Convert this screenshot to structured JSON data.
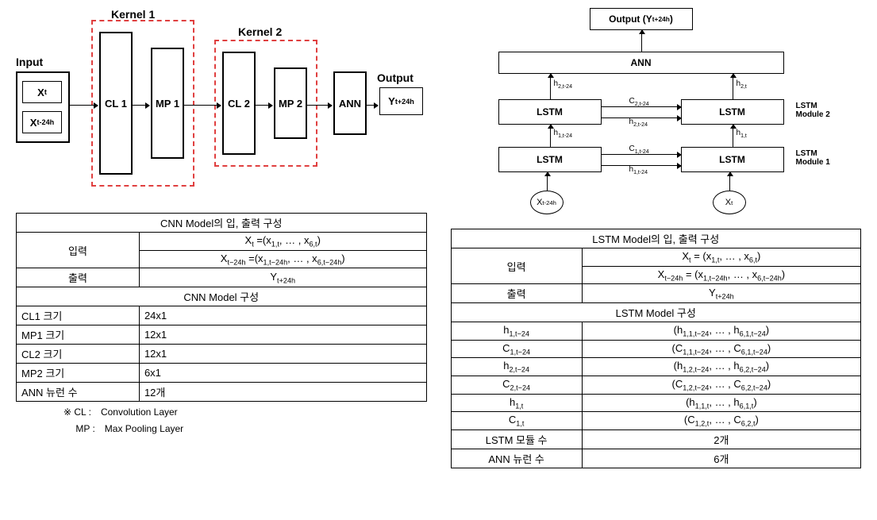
{
  "cnn": {
    "diagram": {
      "input_label": "Input",
      "input_xt": "X<sub>t</sub>",
      "input_xt24": "X<sub>t-24h</sub>",
      "kernel1_label": "Kernel 1",
      "kernel2_label": "Kernel 2",
      "cl1": "CL 1",
      "mp1": "MP 1",
      "cl2": "CL 2",
      "mp2": "MP 2",
      "ann": "ANN",
      "output_label": "Output",
      "output_y": "Y<sub>t+24h</sub>"
    },
    "table": {
      "title1": "CNN Model의 입, 출력 구성",
      "input_label": "입력",
      "input_r1": "X<sub>t</sub> =(x<sub>1,t</sub>, … , x<sub>6,t</sub>)",
      "input_r2": "X<sub>t−24h</sub> =(x<sub>1,t−24h</sub>, … , x<sub>6,t−24h</sub>)",
      "output_label": "출력",
      "output_val": "Y<sub>t+24h</sub>",
      "title2": "CNN Model 구성",
      "rows": [
        [
          "CL1 크기",
          "24x1"
        ],
        [
          "MP1 크기",
          "12x1"
        ],
        [
          "CL2 크기",
          "12x1"
        ],
        [
          "MP2 크기",
          "6x1"
        ],
        [
          "ANN 뉴런 수",
          "12개"
        ]
      ],
      "footnote1": "※ CL :　Convolution Layer",
      "footnote2": "　 MP :　Max Pooling Layer"
    }
  },
  "lstm": {
    "diagram": {
      "output": "Output (Y<sub>t+24h</sub>)",
      "ann": "ANN",
      "lstm": "LSTM",
      "mod1": "LSTM<br>Module 1",
      "mod2": "LSTM<br>Module 2",
      "xt24": "X<sub>t-24h</sub>",
      "xt": "X<sub>t</sub>",
      "h2t24": "h<sub>2,t-24</sub>",
      "h2t": "h<sub>2,t</sub>",
      "c2t24": "C<sub>2,t-24</sub>",
      "h1t24": "h<sub>1,t-24</sub>",
      "h1t": "h<sub>1,t</sub>",
      "c1t24": "C<sub>1,t-24</sub>"
    },
    "table": {
      "title1": "LSTM Model의 입, 출력 구성",
      "input_label": "입력",
      "input_r1": "X<sub>t</sub> = (x<sub>1,t</sub>, … , x<sub>6,t</sub>)",
      "input_r2": "X<sub>t−24h</sub> = (x<sub>1,t−24h</sub>, … , x<sub>6,t−24h</sub>)",
      "output_label": "출력",
      "output_val": "Y<sub>t+24h</sub>",
      "title2": "LSTM Model 구성",
      "rows": [
        [
          "h<sub>1,t−24</sub>",
          "(h<sub>1,1,t−24</sub>, … , h<sub>6,1,t−24</sub>)"
        ],
        [
          "C<sub>1,t−24</sub>",
          "(C<sub>1,1,t−24</sub>, … , C<sub>6,1,t−24</sub>)"
        ],
        [
          "h<sub>2,t−24</sub>",
          "(h<sub>1,2,t−24</sub>, … , h<sub>6,2,t−24</sub>)"
        ],
        [
          "C<sub>2,t−24</sub>",
          "(C<sub>1,2,t−24</sub>, … , C<sub>6,2,t−24</sub>)"
        ],
        [
          "h<sub>1,t</sub>",
          "(h<sub>1,1,t</sub>, … , h<sub>6,1,t</sub>)"
        ],
        [
          "C<sub>1,t</sub>",
          "(C<sub>1,2,t</sub>, … , C<sub>6,2,t</sub>)"
        ],
        [
          "LSTM 모듈 수",
          "2개"
        ],
        [
          "ANN 뉴런 수",
          "6개"
        ]
      ]
    }
  }
}
